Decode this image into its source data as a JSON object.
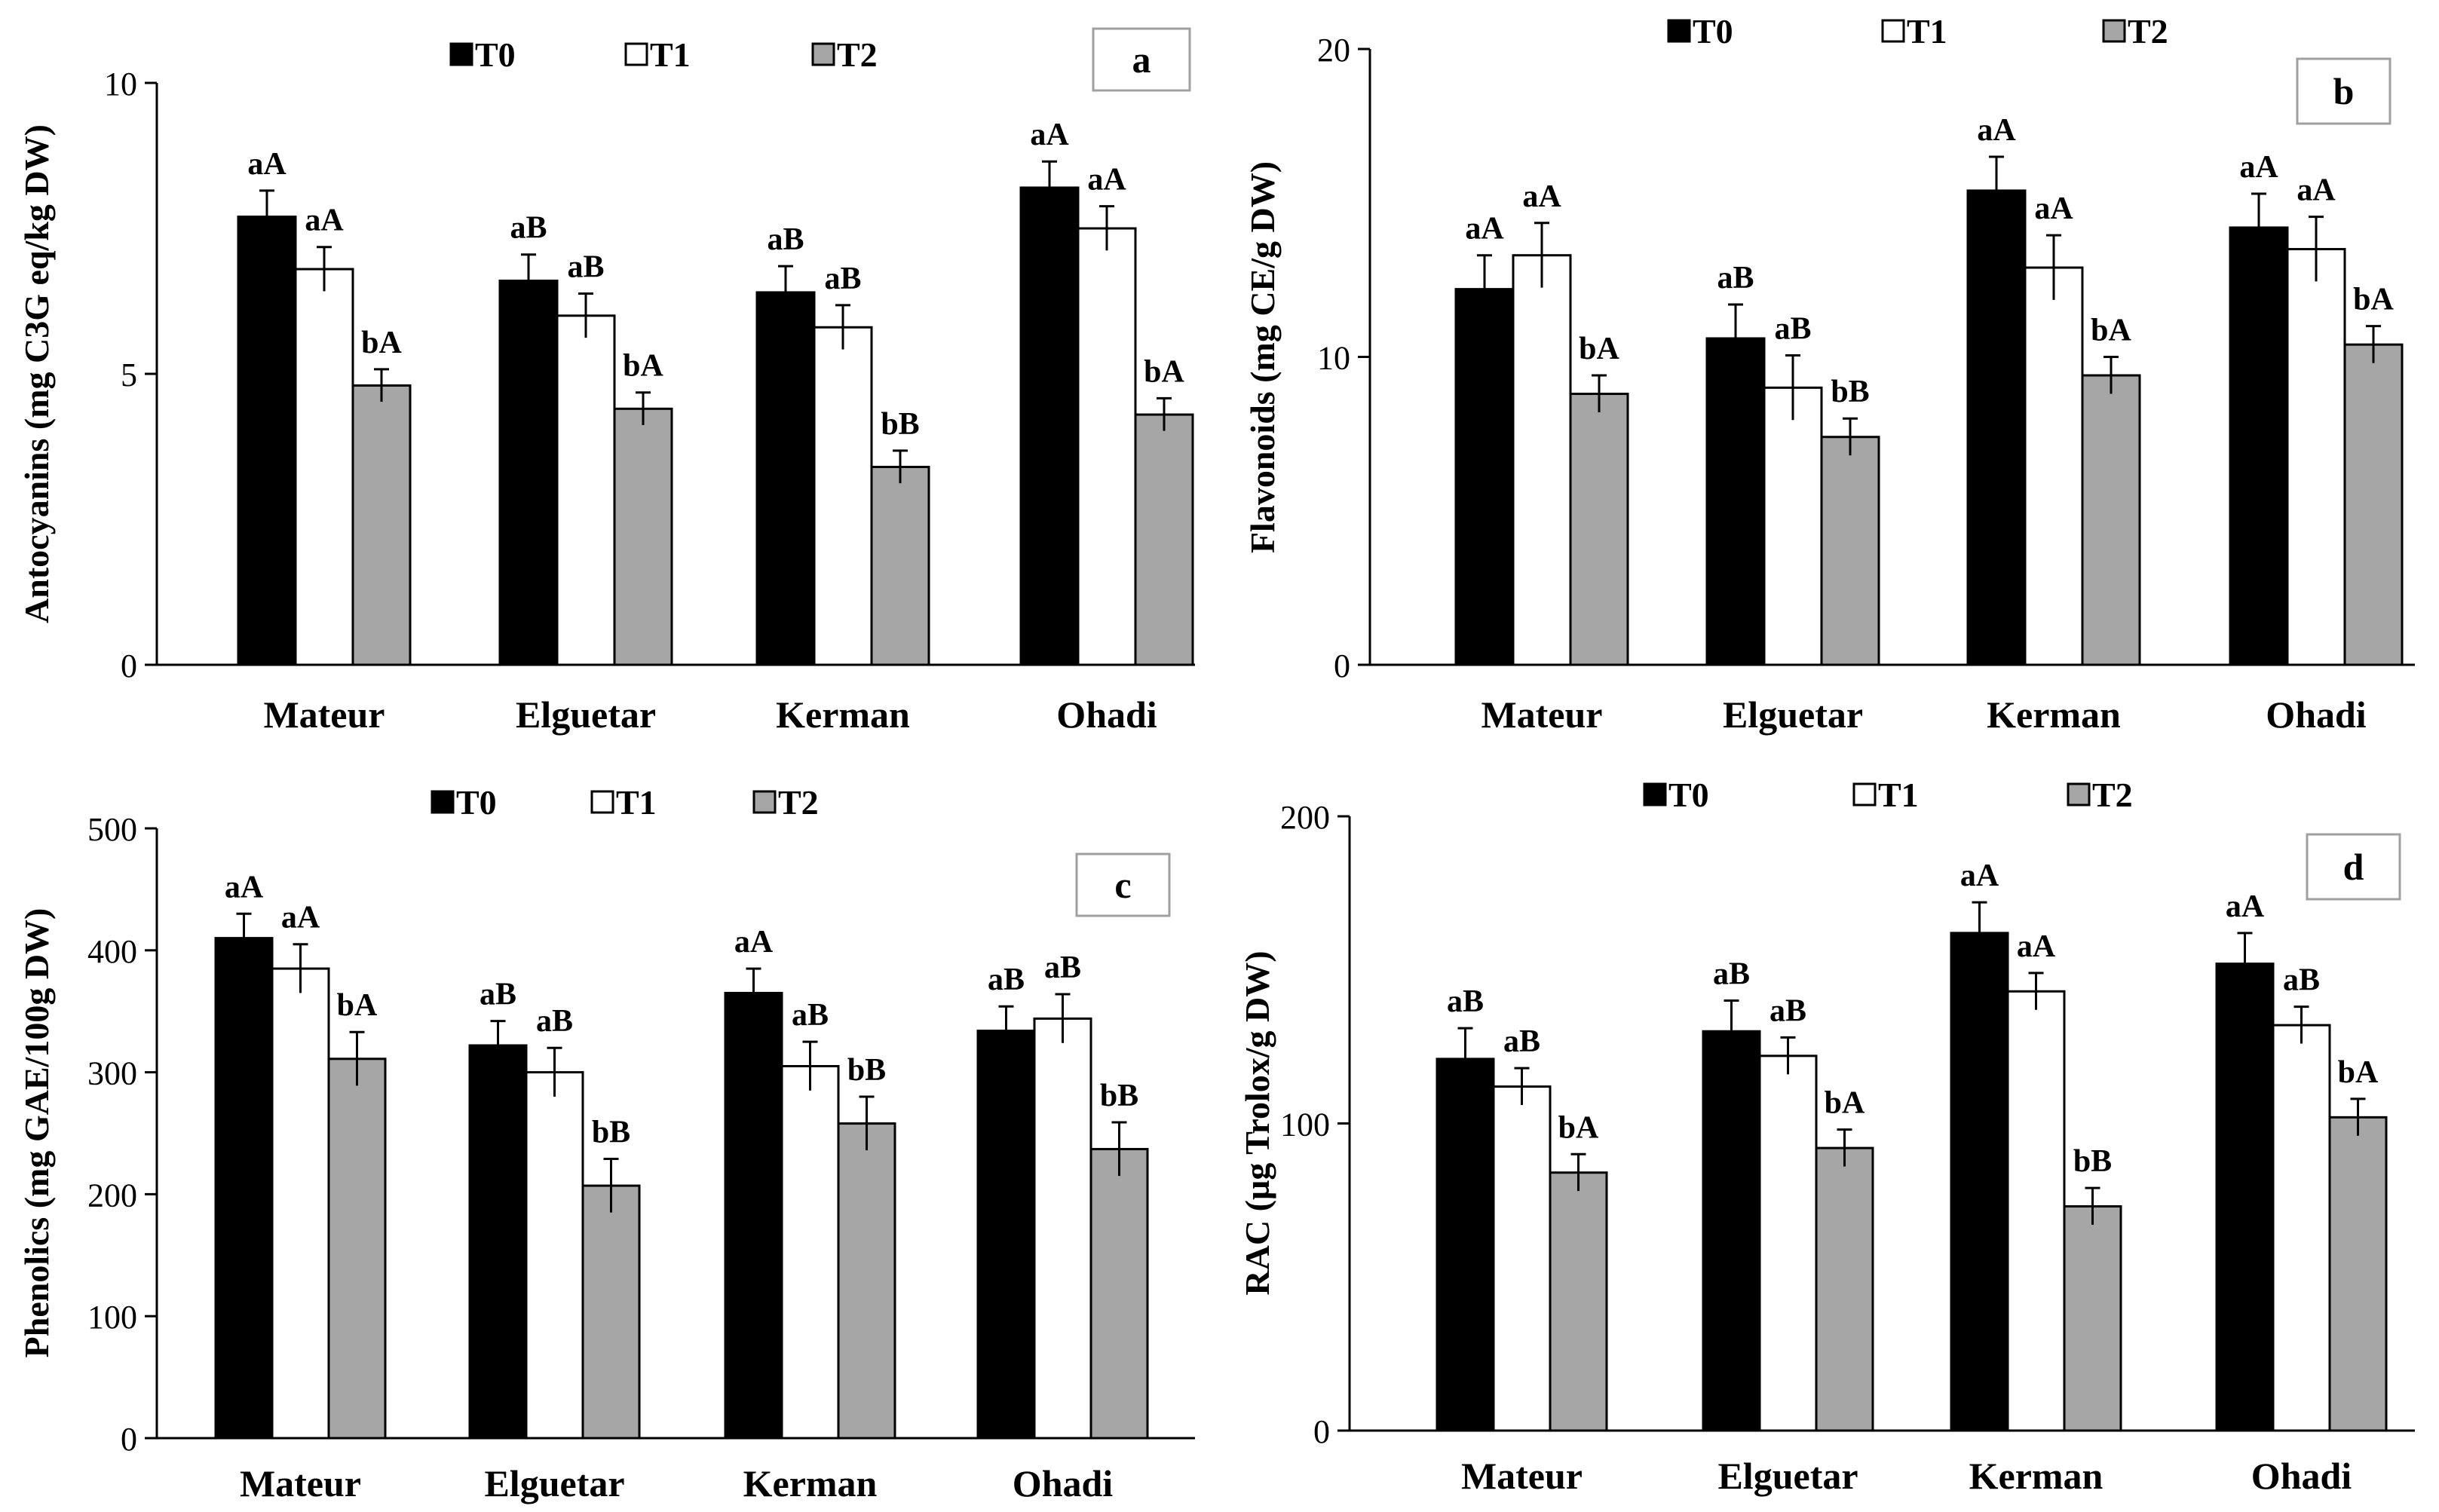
{
  "colors": {
    "T0": "#000000",
    "T1": "#ffffff",
    "T2": "#a6a6a6"
  },
  "chart_data": [
    {
      "type": "bar",
      "panel_label": "a",
      "ylabel": "Antocyanins (mg C3G eq/kg DW)",
      "categories": [
        "Mateur",
        "Elguetar",
        "Kerman",
        "Ohadi"
      ],
      "yticks": [
        0,
        5,
        10
      ],
      "ylim": [
        0,
        10
      ],
      "legend": [
        "T0",
        "T1",
        "T2"
      ],
      "series": [
        {
          "name": "T0",
          "values": [
            7.7,
            6.6,
            6.4,
            8.2
          ],
          "errors": [
            0.45,
            0.45,
            0.45,
            0.45
          ],
          "labels": [
            "aA",
            "aB",
            "aB",
            "aA"
          ]
        },
        {
          "name": "T1",
          "values": [
            6.8,
            6.0,
            5.8,
            7.5
          ],
          "errors": [
            0.38,
            0.38,
            0.38,
            0.38
          ],
          "labels": [
            "aA",
            "aB",
            "aB",
            "aA"
          ]
        },
        {
          "name": "T2",
          "values": [
            4.8,
            4.4,
            3.4,
            4.3
          ],
          "errors": [
            0.28,
            0.28,
            0.28,
            0.28
          ],
          "labels": [
            "bA",
            "bA",
            "bB",
            "bA"
          ]
        }
      ]
    },
    {
      "type": "bar",
      "panel_label": "b",
      "ylabel": "Flavonoids (mg CE/g DW)",
      "categories": [
        "Mateur",
        "Elguetar",
        "Kerman",
        "Ohadi"
      ],
      "yticks": [
        0,
        10,
        20
      ],
      "ylim": [
        0,
        20
      ],
      "legend": [
        "T0",
        "T1",
        "T2"
      ],
      "series": [
        {
          "name": "T0",
          "values": [
            12.2,
            10.6,
            15.4,
            14.2
          ],
          "errors": [
            1.1,
            1.1,
            1.1,
            1.1
          ],
          "labels": [
            "aA",
            "aB",
            "aA",
            "aA"
          ]
        },
        {
          "name": "T1",
          "values": [
            13.3,
            9.0,
            12.9,
            13.5
          ],
          "errors": [
            1.05,
            1.05,
            1.05,
            1.05
          ],
          "labels": [
            "aA",
            "aB",
            "aA",
            "aA"
          ]
        },
        {
          "name": "T2",
          "values": [
            8.8,
            7.4,
            9.4,
            10.4
          ],
          "errors": [
            0.6,
            0.6,
            0.6,
            0.6
          ],
          "labels": [
            "bA",
            "bB",
            "bA",
            "bA"
          ]
        }
      ]
    },
    {
      "type": "bar",
      "panel_label": "c",
      "ylabel": "Phenolics (mg GAE/100g DW)",
      "categories": [
        "Mateur",
        "Elguetar",
        "Kerman",
        "Ohadi"
      ],
      "yticks": [
        0,
        100,
        200,
        300,
        400,
        500
      ],
      "ylim": [
        0,
        500
      ],
      "legend": [
        "T0",
        "T1",
        "T2"
      ],
      "series": [
        {
          "name": "T0",
          "values": [
            410,
            322,
            365,
            334
          ],
          "errors": [
            20,
            20,
            20,
            20
          ],
          "labels": [
            "aA",
            "aB",
            "aA",
            "aB"
          ]
        },
        {
          "name": "T1",
          "values": [
            385,
            300,
            305,
            344
          ],
          "errors": [
            20,
            20,
            20,
            20
          ],
          "labels": [
            "aA",
            "aB",
            "aB",
            "aB"
          ]
        },
        {
          "name": "T2",
          "values": [
            311,
            207,
            258,
            237
          ],
          "errors": [
            22,
            22,
            22,
            22
          ],
          "labels": [
            "bA",
            "bB",
            "bB",
            "bB"
          ]
        }
      ]
    },
    {
      "type": "bar",
      "panel_label": "d",
      "ylabel": "RAC (µg Trolox/g DW)",
      "categories": [
        "Mateur",
        "Elguetar",
        "Kerman",
        "Ohadi"
      ],
      "yticks": [
        0,
        100,
        200
      ],
      "ylim": [
        0,
        200
      ],
      "legend": [
        "T0",
        "T1",
        "T2"
      ],
      "series": [
        {
          "name": "T0",
          "values": [
            121,
            130,
            162,
            152
          ],
          "errors": [
            10,
            10,
            10,
            10
          ],
          "labels": [
            "aB",
            "aB",
            "aA",
            "aA"
          ]
        },
        {
          "name": "T1",
          "values": [
            112,
            122,
            143,
            132
          ],
          "errors": [
            6,
            6,
            6,
            6
          ],
          "labels": [
            "aB",
            "aB",
            "aA",
            "aB"
          ]
        },
        {
          "name": "T2",
          "values": [
            84,
            92,
            73,
            102
          ],
          "errors": [
            6,
            6,
            6,
            6
          ],
          "labels": [
            "bA",
            "bA",
            "bB",
            "bA"
          ]
        }
      ]
    }
  ]
}
